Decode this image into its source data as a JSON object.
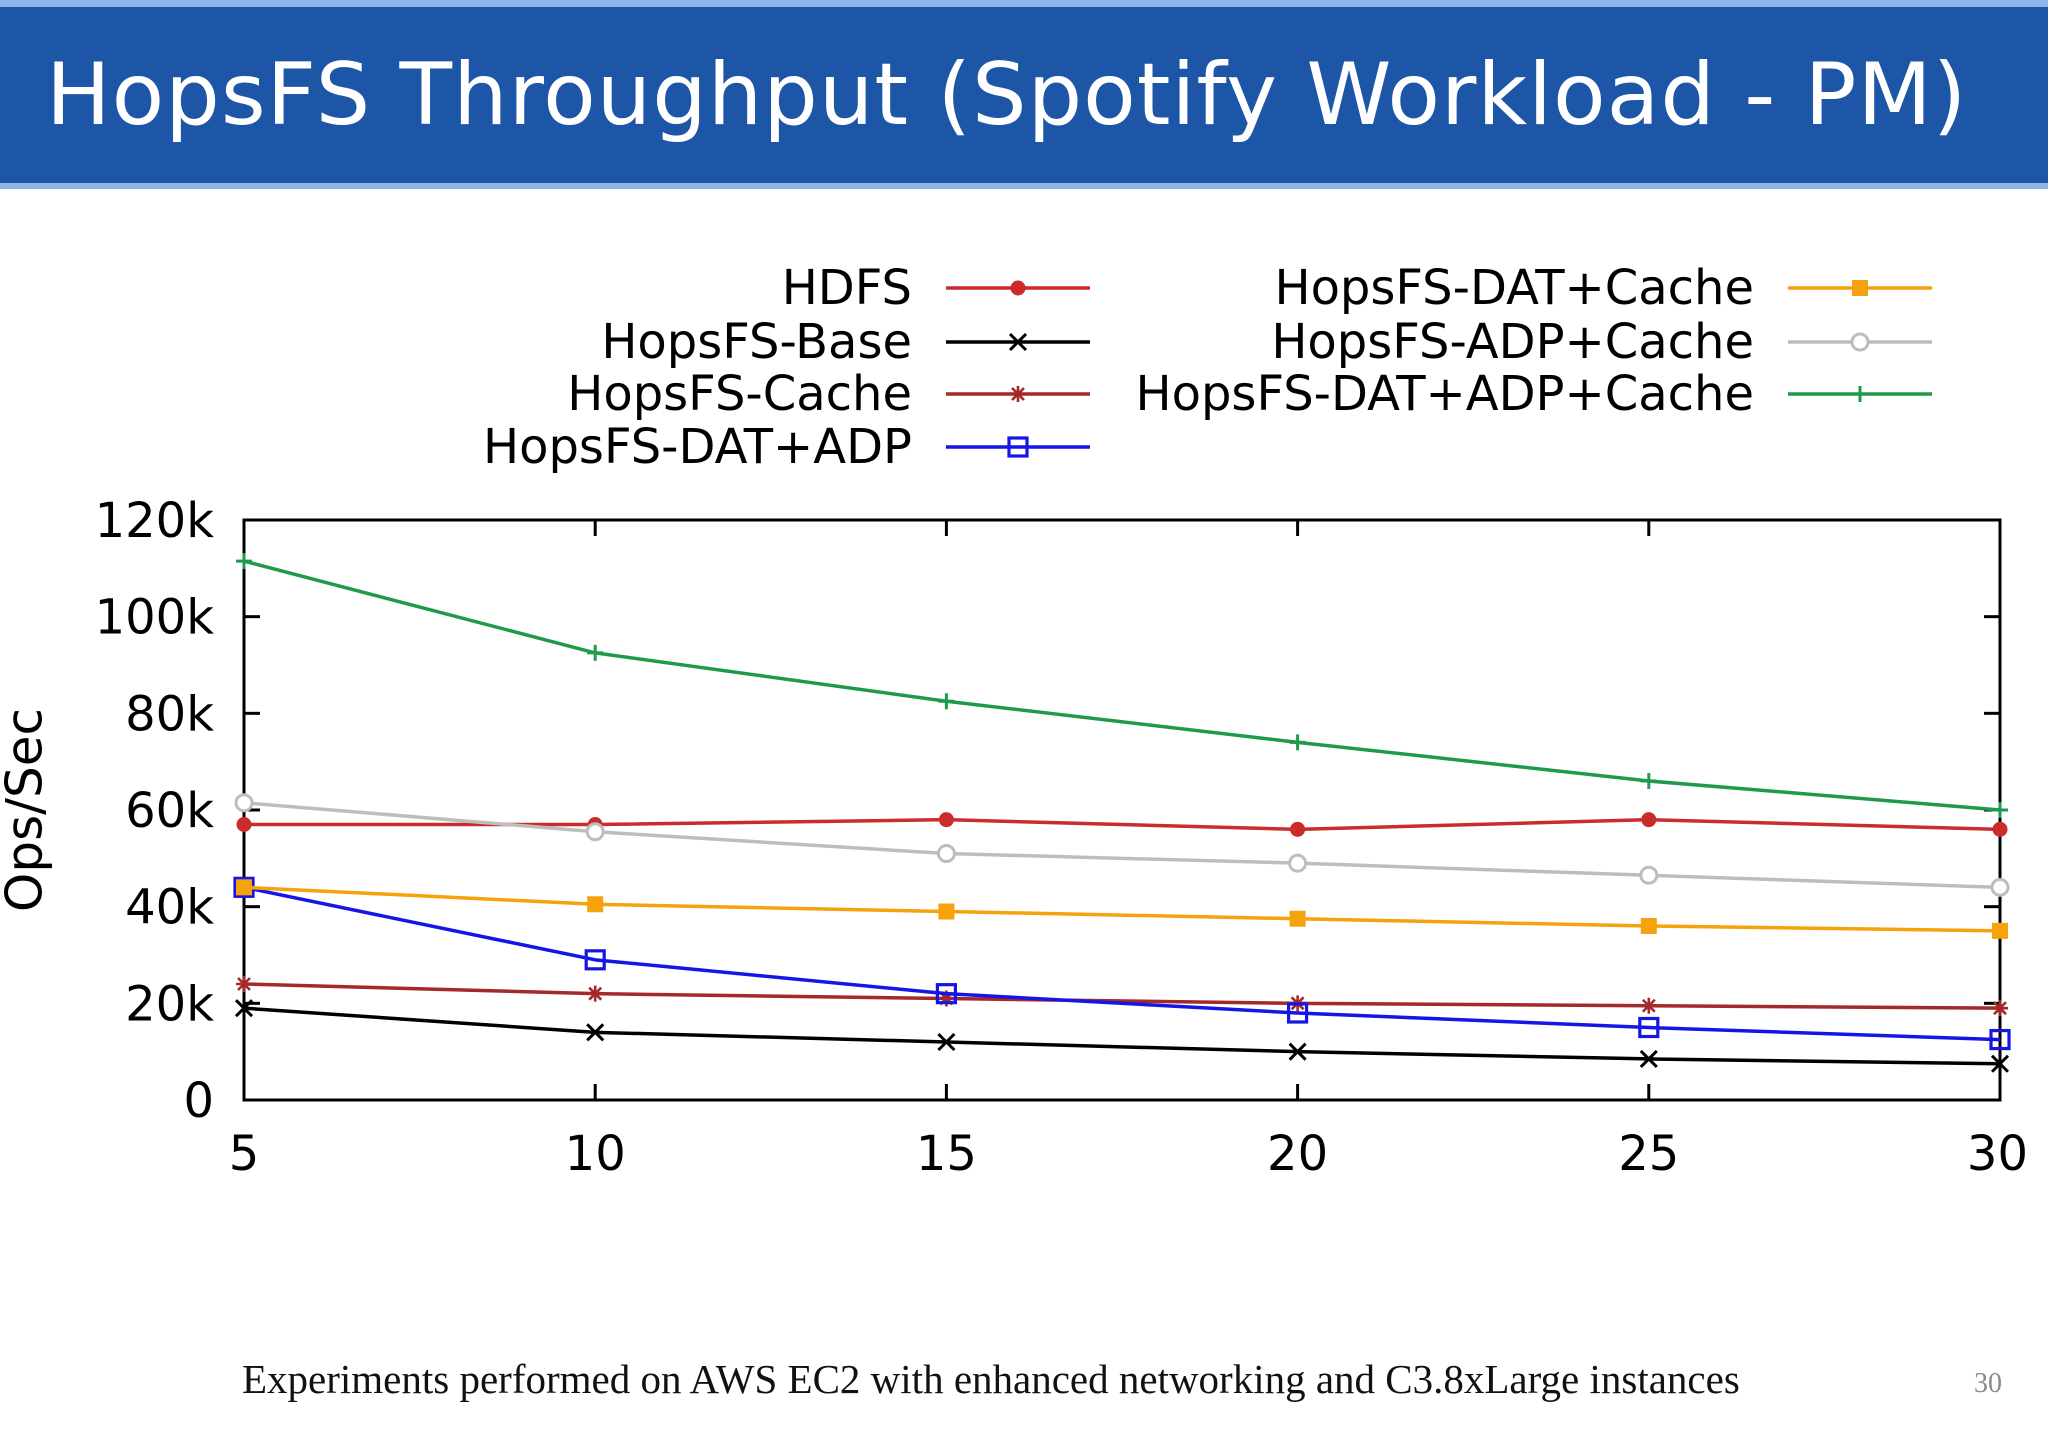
{
  "slide": {
    "title": "HopsFS Throughput (Spotify Workload - PM)",
    "footnote": "Experiments performed on AWS EC2 with enhanced networking and C3.8xLarge instances",
    "page_number": "30",
    "title_bar_color": "#1d56a7"
  },
  "chart_data": {
    "type": "line",
    "title": "",
    "xlabel": "",
    "ylabel": "Ops/Sec",
    "x": [
      5,
      10,
      15,
      20,
      25,
      30
    ],
    "xticks": [
      "5",
      "10",
      "15",
      "20",
      "25",
      "30"
    ],
    "xlim": [
      5,
      30
    ],
    "ylim": [
      0,
      120000
    ],
    "yticks": [
      {
        "value": 0,
        "label": "0"
      },
      {
        "value": 20000,
        "label": "20k"
      },
      {
        "value": 40000,
        "label": "40k"
      },
      {
        "value": 60000,
        "label": "60k"
      },
      {
        "value": 80000,
        "label": "80k"
      },
      {
        "value": 100000,
        "label": "100k"
      },
      {
        "value": 120000,
        "label": "120k"
      }
    ],
    "grid": false,
    "legend_position": "top, two columns",
    "series": [
      {
        "name": "HDFS",
        "color": "#cc2b2b",
        "marker": "filled-circle",
        "legend_column": 0,
        "values": [
          57000,
          57000,
          58000,
          56000,
          58000,
          56000
        ]
      },
      {
        "name": "HopsFS-Base",
        "color": "#000000",
        "marker": "x",
        "legend_column": 0,
        "values": [
          19000,
          14000,
          12000,
          10000,
          8500,
          7500
        ]
      },
      {
        "name": "HopsFS-Cache",
        "color": "#a32a2a",
        "marker": "asterisk",
        "legend_column": 0,
        "values": [
          24000,
          22000,
          21000,
          20000,
          19500,
          19000
        ]
      },
      {
        "name": "HopsFS-DAT+ADP",
        "color": "#1515e6",
        "marker": "open-square",
        "legend_column": 0,
        "values": [
          44000,
          29000,
          22000,
          18000,
          15000,
          12500
        ]
      },
      {
        "name": "HopsFS-DAT+Cache",
        "color": "#f5a20c",
        "marker": "filled-square",
        "legend_column": 1,
        "values": [
          44000,
          40500,
          39000,
          37500,
          36000,
          35000
        ]
      },
      {
        "name": "HopsFS-ADP+Cache",
        "color": "#bdbdbd",
        "marker": "open-circle",
        "legend_column": 1,
        "values": [
          61500,
          55500,
          51000,
          49000,
          46500,
          44000
        ]
      },
      {
        "name": "HopsFS-DAT+ADP+Cache",
        "color": "#1f9a4a",
        "marker": "plus",
        "legend_column": 1,
        "values": [
          111500,
          92500,
          82500,
          74000,
          66000,
          60000
        ]
      }
    ]
  }
}
